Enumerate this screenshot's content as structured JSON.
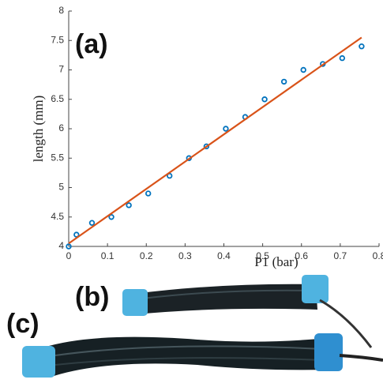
{
  "chart_data": {
    "type": "scatter",
    "x_label": "P1 (bar)",
    "y_label": "length (mm)",
    "annotations": [
      "(a)",
      "(b)",
      "(c)"
    ],
    "series": [
      {
        "style": "markers",
        "color": "#0072bd",
        "x": [
          0,
          0.02,
          0.06,
          0.11,
          0.155,
          0.205,
          0.26,
          0.31,
          0.355,
          0.405,
          0.455,
          0.505,
          0.555,
          0.605,
          0.655,
          0.705,
          0.755
        ],
        "values": [
          4.0,
          4.2,
          4.4,
          4.5,
          4.7,
          4.9,
          5.2,
          5.5,
          5.7,
          6.0,
          6.2,
          6.5,
          6.8,
          7.0,
          7.1,
          7.2,
          7.4
        ]
      },
      {
        "style": "line",
        "color": "#d95319",
        "x": [
          0,
          0.755
        ],
        "values": [
          4.05,
          7.55
        ]
      }
    ],
    "xlim": [
      0,
      0.8
    ],
    "xticks": [
      0,
      0.1,
      0.2,
      0.3,
      0.4,
      0.5,
      0.6,
      0.7,
      0.8
    ],
    "ylim": [
      4,
      8
    ],
    "yticks": [
      4,
      4.5,
      5,
      5.5,
      6,
      6.5,
      7,
      7.5,
      8
    ]
  }
}
